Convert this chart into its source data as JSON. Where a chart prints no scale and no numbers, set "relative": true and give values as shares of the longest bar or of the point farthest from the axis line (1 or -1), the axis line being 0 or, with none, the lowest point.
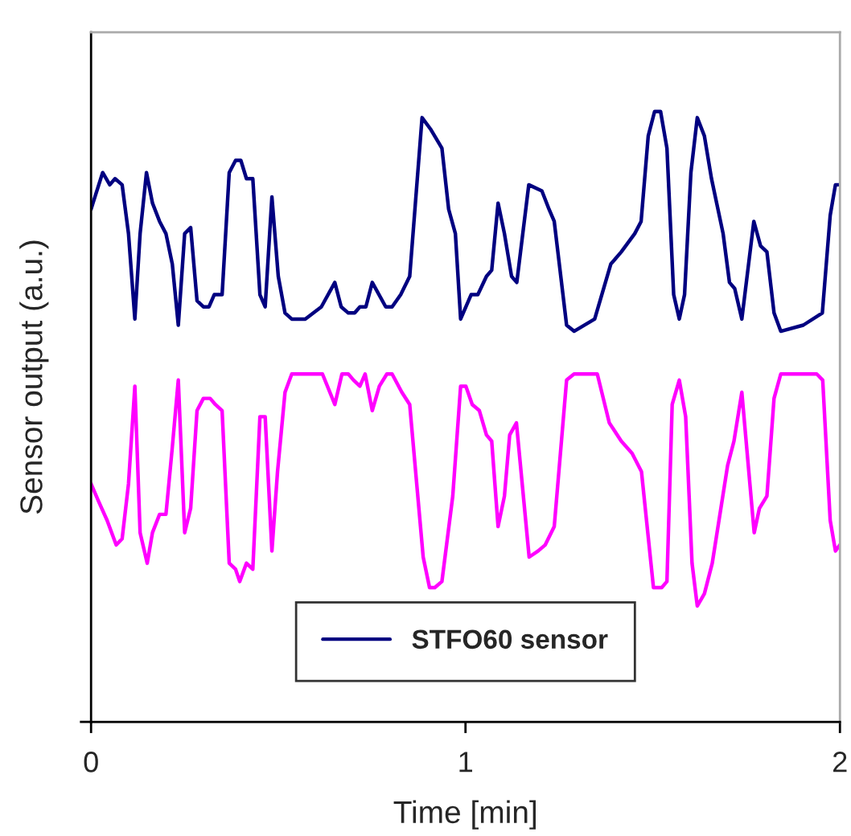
{
  "chart_data": {
    "type": "line",
    "xlabel": "Time [min]",
    "ylabel": "Sensor output (a.u.)",
    "relative": true,
    "xlim": [
      0,
      2
    ],
    "xticks": [
      0,
      1,
      2
    ],
    "tick_labels": "x",
    "legend": "bottom",
    "grid": false,
    "marker": "none",
    "line_style": "solid",
    "series": [
      {
        "name": "STFO60 sensor",
        "color": "#000080",
        "x": [
          0,
          0.031,
          0.05,
          0.064,
          0.083,
          0.1,
          0.117,
          0.131,
          0.148,
          0.164,
          0.183,
          0.2,
          0.217,
          0.233,
          0.25,
          0.266,
          0.283,
          0.3,
          0.315,
          0.329,
          0.35,
          0.369,
          0.386,
          0.4,
          0.415,
          0.432,
          0.451,
          0.465,
          0.483,
          0.5,
          0.518,
          0.536,
          0.572,
          0.615,
          0.651,
          0.668,
          0.687,
          0.704,
          0.718,
          0.734,
          0.751,
          0.787,
          0.804,
          0.827,
          0.851,
          0.884,
          0.908,
          0.937,
          0.955,
          0.973,
          0.987,
          1.015,
          1.033,
          1.056,
          1.07,
          1.087,
          1.104,
          1.123,
          1.137,
          1.169,
          1.204,
          1.223,
          1.237,
          1.27,
          1.29,
          1.345,
          1.388,
          1.416,
          1.452,
          1.469,
          1.488,
          1.505,
          1.521,
          1.538,
          1.556,
          1.571,
          1.585,
          1.602,
          1.619,
          1.638,
          1.657,
          1.688,
          1.705,
          1.719,
          1.738,
          1.77,
          1.788,
          1.805,
          1.824,
          1.842,
          1.902,
          1.953,
          1.974,
          1.988,
          2.0
        ],
        "values": [
          0.84,
          0.9,
          0.88,
          0.89,
          0.88,
          0.8,
          0.66,
          0.8,
          0.9,
          0.85,
          0.82,
          0.8,
          0.75,
          0.65,
          0.8,
          0.81,
          0.69,
          0.68,
          0.68,
          0.7,
          0.7,
          0.9,
          0.92,
          0.92,
          0.89,
          0.89,
          0.7,
          0.68,
          0.86,
          0.73,
          0.67,
          0.66,
          0.66,
          0.68,
          0.72,
          0.68,
          0.67,
          0.67,
          0.68,
          0.68,
          0.72,
          0.68,
          0.68,
          0.7,
          0.73,
          0.99,
          0.97,
          0.94,
          0.84,
          0.8,
          0.66,
          0.7,
          0.7,
          0.73,
          0.74,
          0.85,
          0.8,
          0.73,
          0.72,
          0.88,
          0.87,
          0.84,
          0.82,
          0.65,
          0.64,
          0.66,
          0.75,
          0.77,
          0.8,
          0.82,
          0.96,
          1.0,
          1.0,
          0.94,
          0.7,
          0.66,
          0.7,
          0.9,
          0.99,
          0.96,
          0.89,
          0.8,
          0.72,
          0.71,
          0.66,
          0.82,
          0.78,
          0.77,
          0.67,
          0.64,
          0.65,
          0.67,
          0.83,
          0.88,
          0.88
        ]
      },
      {
        "color": "#ff00ff",
        "x": [
          0,
          0.021,
          0.043,
          0.067,
          0.083,
          0.1,
          0.117,
          0.131,
          0.15,
          0.164,
          0.183,
          0.2,
          0.217,
          0.233,
          0.25,
          0.266,
          0.283,
          0.3,
          0.318,
          0.332,
          0.35,
          0.369,
          0.386,
          0.397,
          0.415,
          0.432,
          0.451,
          0.465,
          0.483,
          0.498,
          0.518,
          0.536,
          0.558,
          0.618,
          0.651,
          0.67,
          0.687,
          0.701,
          0.718,
          0.732,
          0.751,
          0.77,
          0.79,
          0.804,
          0.83,
          0.851,
          0.887,
          0.904,
          0.918,
          0.937,
          0.966,
          0.987,
          1.001,
          1.018,
          1.037,
          1.056,
          1.07,
          1.087,
          1.104,
          1.118,
          1.136,
          1.17,
          1.194,
          1.213,
          1.237,
          1.27,
          1.29,
          1.352,
          1.384,
          1.416,
          1.445,
          1.47,
          1.502,
          1.524,
          1.538,
          1.552,
          1.571,
          1.588,
          1.605,
          1.619,
          1.638,
          1.659,
          1.7,
          1.717,
          1.738,
          1.771,
          1.785,
          1.805,
          1.824,
          1.842,
          1.938,
          1.954,
          1.974,
          1.988,
          2.0
        ],
        "values": [
          0.39,
          0.36,
          0.33,
          0.29,
          0.3,
          0.39,
          0.55,
          0.31,
          0.26,
          0.31,
          0.34,
          0.34,
          0.45,
          0.56,
          0.31,
          0.35,
          0.51,
          0.53,
          0.53,
          0.52,
          0.51,
          0.26,
          0.25,
          0.23,
          0.26,
          0.25,
          0.5,
          0.5,
          0.28,
          0.41,
          0.54,
          0.57,
          0.57,
          0.57,
          0.52,
          0.57,
          0.57,
          0.56,
          0.55,
          0.57,
          0.51,
          0.55,
          0.57,
          0.57,
          0.54,
          0.52,
          0.27,
          0.22,
          0.22,
          0.23,
          0.37,
          0.55,
          0.55,
          0.52,
          0.51,
          0.47,
          0.46,
          0.32,
          0.37,
          0.47,
          0.49,
          0.27,
          0.28,
          0.29,
          0.32,
          0.56,
          0.57,
          0.57,
          0.49,
          0.46,
          0.44,
          0.41,
          0.22,
          0.22,
          0.23,
          0.52,
          0.56,
          0.5,
          0.26,
          0.19,
          0.21,
          0.26,
          0.42,
          0.46,
          0.54,
          0.31,
          0.35,
          0.37,
          0.53,
          0.57,
          0.57,
          0.56,
          0.33,
          0.28,
          0.29
        ]
      }
    ]
  }
}
